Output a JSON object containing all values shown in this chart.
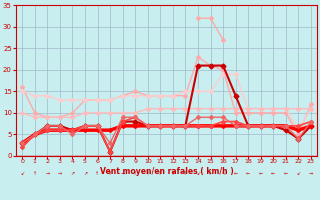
{
  "x": [
    0,
    1,
    2,
    3,
    4,
    5,
    6,
    7,
    8,
    9,
    10,
    11,
    12,
    13,
    14,
    15,
    16,
    17,
    18,
    19,
    20,
    21,
    22,
    23
  ],
  "series": [
    {
      "label": "light_pink_top",
      "y": [
        16,
        10,
        9,
        9,
        10,
        13,
        13,
        13,
        14,
        15,
        14,
        14,
        14,
        14,
        23,
        21,
        20,
        10,
        10,
        10,
        10,
        10,
        5,
        12
      ],
      "color": "#ffaaaa",
      "lw": 1.0,
      "marker": "D",
      "ms": 2.0
    },
    {
      "label": "light_pink_mid",
      "y": [
        15,
        14,
        14,
        13,
        13,
        13,
        13,
        13,
        14,
        14,
        14,
        14,
        14,
        15,
        15,
        15,
        19,
        19,
        11,
        11,
        11,
        11,
        6,
        11
      ],
      "color": "#ffcccc",
      "lw": 1.0,
      "marker": "D",
      "ms": 2.0
    },
    {
      "label": "pink_wide",
      "y": [
        10,
        9,
        9,
        9,
        9,
        10,
        10,
        10,
        10,
        10,
        11,
        11,
        11,
        11,
        11,
        11,
        11,
        11,
        11,
        11,
        11,
        11,
        11,
        11
      ],
      "color": "#ffbbbb",
      "lw": 1.0,
      "marker": "D",
      "ms": 2.0
    },
    {
      "label": "dark_red_spike",
      "y": [
        3,
        5,
        7,
        7,
        6,
        7,
        7,
        1,
        8,
        8,
        7,
        7,
        7,
        7,
        21,
        21,
        21,
        14,
        7,
        7,
        7,
        6,
        4,
        7
      ],
      "color": "#cc0000",
      "lw": 1.5,
      "marker": "D",
      "ms": 2.5
    },
    {
      "label": "red_flat",
      "y": [
        3,
        5,
        6,
        6,
        6,
        6,
        6,
        6,
        7,
        7,
        7,
        7,
        7,
        7,
        7,
        7,
        7,
        7,
        7,
        7,
        7,
        7,
        6,
        7
      ],
      "color": "#ff0000",
      "lw": 2.5,
      "marker": "D",
      "ms": 2.0
    },
    {
      "label": "red_dip",
      "y": [
        2,
        5,
        6,
        6,
        6,
        7,
        7,
        1,
        8,
        9,
        7,
        7,
        7,
        7,
        7,
        7,
        8,
        8,
        7,
        7,
        7,
        7,
        7,
        8
      ],
      "color": "#ff4444",
      "lw": 1.2,
      "marker": "D",
      "ms": 2.0
    },
    {
      "label": "pink_bottom_rise",
      "y": [
        3,
        5,
        7,
        7,
        5,
        7,
        7,
        3,
        9,
        9,
        7,
        7,
        7,
        7,
        9,
        9,
        9,
        7,
        7,
        7,
        7,
        7,
        4,
        8
      ],
      "color": "#ee6666",
      "lw": 1.0,
      "marker": "D",
      "ms": 2.0
    },
    {
      "label": "light_top_peak",
      "y": [
        null,
        null,
        null,
        null,
        null,
        null,
        null,
        null,
        null,
        null,
        null,
        null,
        null,
        null,
        32,
        32,
        27,
        null,
        null,
        null,
        null,
        null,
        null,
        null
      ],
      "color": "#ffaaaa",
      "lw": 1.0,
      "marker": "D",
      "ms": 2.0
    }
  ],
  "xlim": [
    -0.5,
    23.5
  ],
  "ylim": [
    0,
    35
  ],
  "yticks": [
    0,
    5,
    10,
    15,
    20,
    25,
    30,
    35
  ],
  "xticks": [
    0,
    1,
    2,
    3,
    4,
    5,
    6,
    7,
    8,
    9,
    10,
    11,
    12,
    13,
    14,
    15,
    16,
    17,
    18,
    19,
    20,
    21,
    22,
    23
  ],
  "xlabel": "Vent moyen/en rafales ( km/h )",
  "bg_color": "#c8eef0",
  "grid_color": "#a0b8c8",
  "tick_color": "#cc0000",
  "label_color": "#cc0000",
  "axis_color": "#cc0000"
}
